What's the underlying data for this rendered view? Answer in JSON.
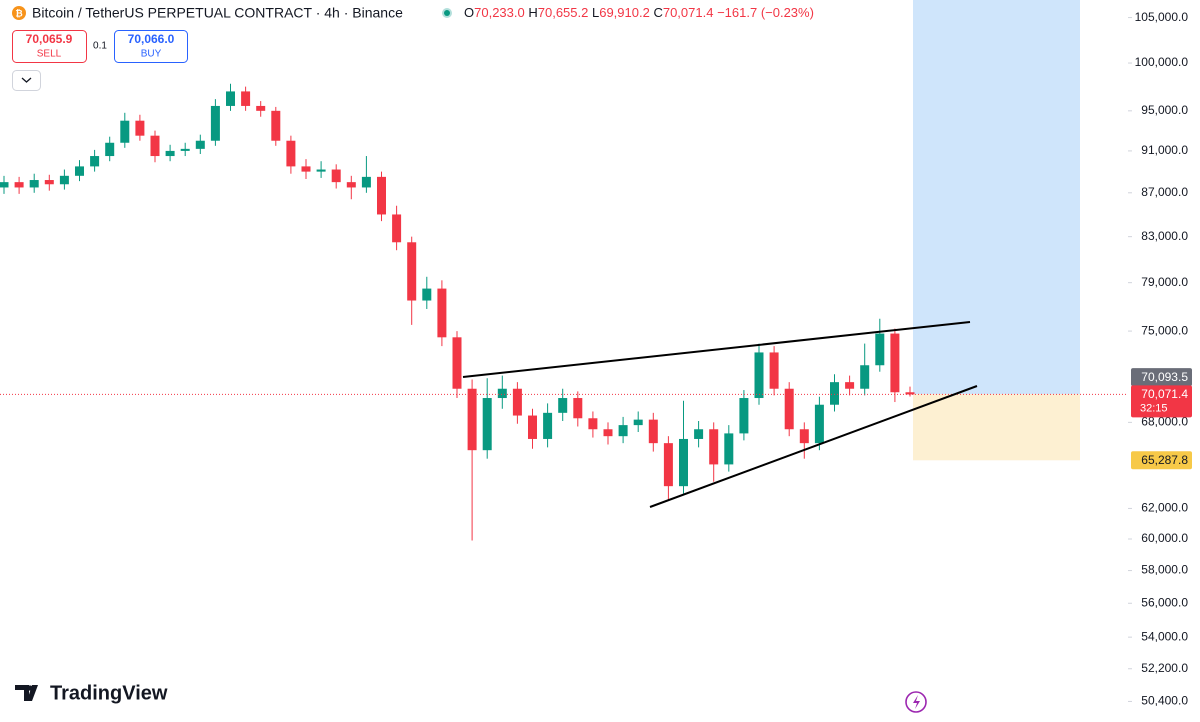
{
  "header": {
    "symbol": "Bitcoin / TetherUS PERPETUAL CONTRACT · 4h · Binance",
    "open_label": "O",
    "open": "70,233.0",
    "high_label": "H",
    "high": "70,655.2",
    "low_label": "L",
    "low": "69,910.2",
    "close_label": "C",
    "close": "70,071.4",
    "change": "−161.7 (−0.23%)"
  },
  "trade": {
    "sell_price": "70,065.9",
    "sell": "SELL",
    "quantity": "0.1",
    "buy_price": "70,066.0",
    "buy": "BUY"
  },
  "brand": "TradingView",
  "chart_data": {
    "type": "candlestick",
    "log_scale": true,
    "ylim": [
      49300,
      107000
    ],
    "yticks": [
      {
        "value": 105000,
        "label": "105,000.0"
      },
      {
        "value": 100000,
        "label": "100,000.0"
      },
      {
        "value": 95000,
        "label": "95,000.0"
      },
      {
        "value": 91000,
        "label": "91,000.0"
      },
      {
        "value": 87000,
        "label": "87,000.0"
      },
      {
        "value": 83000,
        "label": "83,000.0"
      },
      {
        "value": 79000,
        "label": "79,000.0"
      },
      {
        "value": 75000,
        "label": "75,000.0"
      },
      {
        "value": 68000,
        "label": "68,000.0"
      },
      {
        "value": 62000,
        "label": "62,000.0"
      },
      {
        "value": 60000,
        "label": "60,000.0"
      },
      {
        "value": 58000,
        "label": "58,000.0"
      },
      {
        "value": 56000,
        "label": "56,000.0"
      },
      {
        "value": 54000,
        "label": "54,000.0"
      },
      {
        "value": 52200,
        "label": "52,200.0"
      },
      {
        "value": 50400,
        "label": "50,400.0"
      }
    ],
    "up_color": "#089981",
    "down_color": "#f23645",
    "open": [
      87500,
      88000,
      87500,
      88200,
      87800,
      88600,
      89500,
      90500,
      91800,
      94000,
      92500,
      90500,
      91000,
      91200,
      92000,
      95500,
      97000,
      95500,
      95000,
      92000,
      89500,
      89000,
      89200,
      88000,
      87500,
      88500,
      85000,
      82500,
      77500,
      78500,
      74500,
      70500,
      66000,
      69800,
      70500,
      68500,
      66800,
      68700,
      69800,
      68300,
      67500,
      67000,
      67800,
      68200,
      66500,
      63500,
      66800,
      67500,
      65000,
      67200,
      69800,
      73300,
      70500,
      67500,
      66500,
      69300,
      71000,
      70500,
      72300,
      74800,
      70233
    ],
    "high": [
      88600,
      88500,
      88800,
      88700,
      89200,
      90100,
      91100,
      92400,
      94800,
      94600,
      93000,
      91600,
      91800,
      92600,
      96200,
      97800,
      97500,
      96000,
      95400,
      92500,
      90200,
      90000,
      89700,
      88600,
      90500,
      89000,
      85800,
      83000,
      79500,
      79200,
      75000,
      71200,
      71300,
      71500,
      71000,
      69000,
      69400,
      70500,
      70300,
      68800,
      68000,
      68400,
      68800,
      68700,
      67000,
      69600,
      68100,
      68000,
      67800,
      70400,
      74000,
      73800,
      71000,
      68000,
      69900,
      71600,
      71500,
      74000,
      76000,
      75200,
      70655.2
    ],
    "low": [
      86900,
      86900,
      87000,
      87200,
      87300,
      88100,
      89000,
      90000,
      91300,
      92000,
      89900,
      90000,
      90500,
      90700,
      91500,
      95000,
      95000,
      94400,
      91500,
      88800,
      88300,
      88400,
      87400,
      86400,
      87000,
      84400,
      81800,
      75500,
      76800,
      73800,
      69800,
      59900,
      65400,
      69000,
      67900,
      66100,
      66200,
      68100,
      67700,
      66900,
      66400,
      66500,
      67300,
      65900,
      62600,
      63000,
      66200,
      63800,
      64500,
      66700,
      69300,
      70000,
      67000,
      65400,
      66000,
      68800,
      70000,
      70000,
      71800,
      69500,
      69910.2
    ],
    "close": [
      88000,
      87500,
      88200,
      87800,
      88600,
      89500,
      90500,
      91800,
      94000,
      92500,
      90500,
      91000,
      91200,
      92000,
      95500,
      97000,
      95500,
      95000,
      92000,
      89500,
      89000,
      89200,
      88000,
      87500,
      88500,
      85000,
      82500,
      77500,
      78500,
      74500,
      70500,
      66000,
      69800,
      70500,
      68500,
      66800,
      68700,
      69800,
      68300,
      67500,
      67000,
      67800,
      68200,
      66500,
      63500,
      66800,
      67500,
      65000,
      67200,
      69800,
      73300,
      70500,
      67500,
      66500,
      69300,
      71000,
      70500,
      72300,
      74800,
      70233,
      70071.4
    ],
    "price_badges": [
      {
        "value": 70093.5,
        "label": "70,093.5",
        "color": "#6a6d78"
      },
      {
        "value": 70071.4,
        "label": "70,071.4",
        "color": "#f23645"
      },
      {
        "value": 65287.8,
        "label": "65,287.8",
        "color": "#f7c948"
      }
    ],
    "countdown": "32:15"
  }
}
